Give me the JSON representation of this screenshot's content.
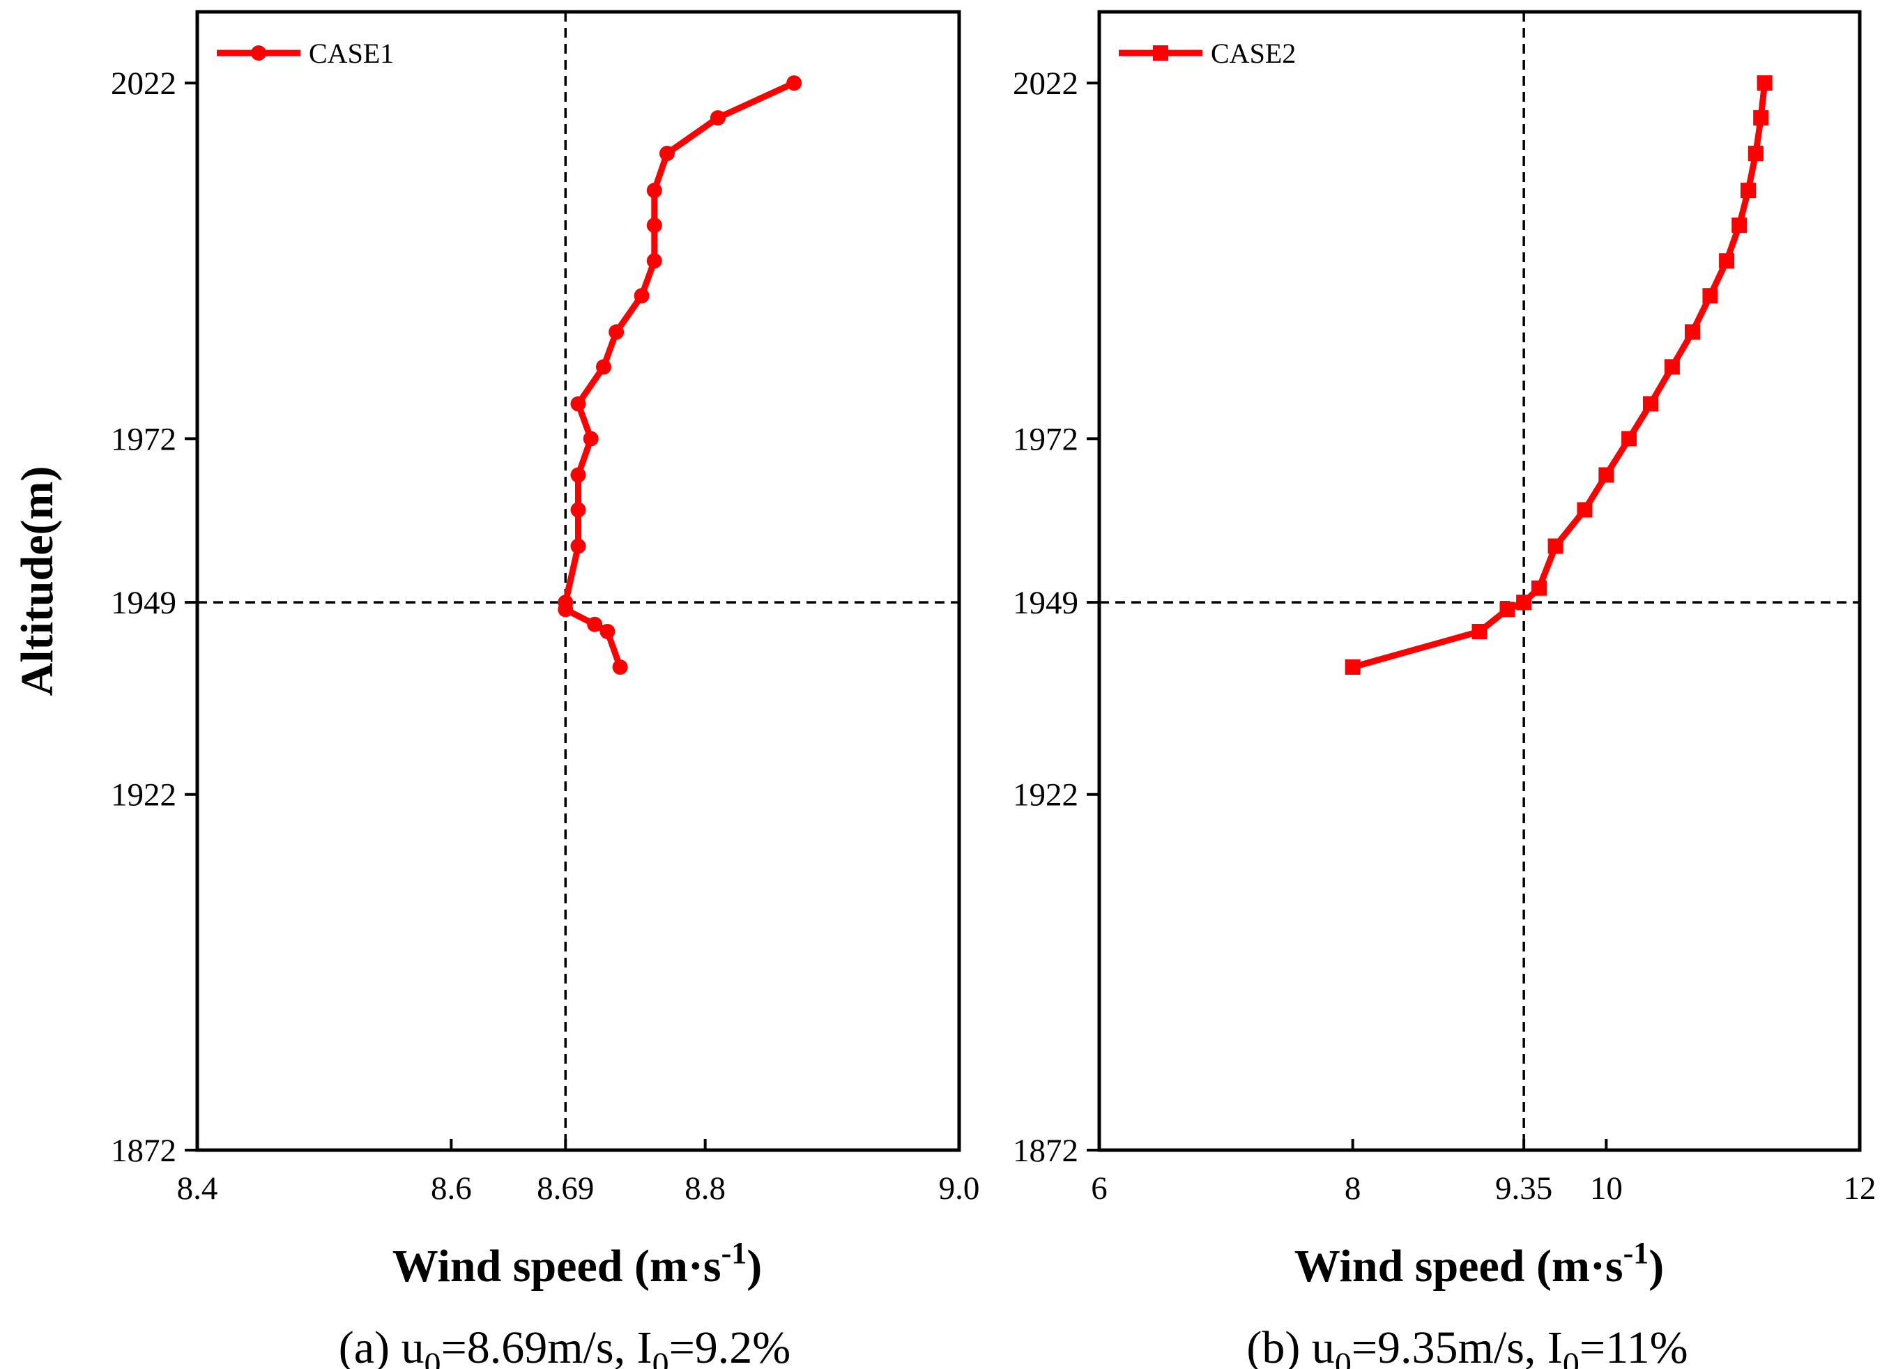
{
  "chart_data": [
    {
      "type": "line",
      "panel": "a",
      "series": [
        {
          "name": "CASE1",
          "marker": "circle",
          "color": "#ff0000",
          "points": [
            [
              8.733,
              1939.9
            ],
            [
              8.723,
              1944.9
            ],
            [
              8.713,
              1945.9
            ],
            [
              8.69,
              1948.0
            ],
            [
              8.69,
              1949.0
            ],
            [
              8.7,
              1956.9
            ],
            [
              8.7,
              1962.0
            ],
            [
              8.7,
              1966.9
            ],
            [
              8.71,
              1972.0
            ],
            [
              8.7,
              1976.9
            ],
            [
              8.72,
              1982.1
            ],
            [
              8.73,
              1987.0
            ],
            [
              8.75,
              1992.1
            ],
            [
              8.76,
              1997.0
            ],
            [
              8.76,
              2002.0
            ],
            [
              8.76,
              2006.9
            ],
            [
              8.77,
              2012.1
            ],
            [
              8.81,
              2017.1
            ],
            [
              8.87,
              2022.0
            ]
          ]
        }
      ],
      "xlim": [
        8.4,
        9.0
      ],
      "ylim": [
        1872,
        2032
      ],
      "xticks": [
        "8.4",
        "8.6",
        "8.69",
        "8.8",
        "9.0"
      ],
      "xtick_values": [
        8.4,
        8.6,
        8.69,
        8.8,
        9.0
      ],
      "yticks": [
        "1872",
        "1922",
        "1949",
        "1972",
        "2022"
      ],
      "ytick_values": [
        1872,
        1922,
        1949,
        1972,
        2022
      ],
      "ref_lines": {
        "x": 8.69,
        "y": 1949
      },
      "xlabel": "Wind speed (m·s",
      "xlabel_sup": "-1",
      "xlabel_end": ")",
      "ylabel": "Altitude(m)",
      "legend_position": "top-left",
      "caption": {
        "prefix": "(a) u",
        "sub1": "0",
        "middle": "=8.69m/s,  I",
        "sub2": "0",
        "suffix": "=9.2%"
      }
    },
    {
      "type": "line",
      "panel": "b",
      "series": [
        {
          "name": "CASE2",
          "marker": "square",
          "color": "#ff0000",
          "points": [
            [
              8.0,
              1939.9
            ],
            [
              9.0,
              1944.9
            ],
            [
              9.22,
              1948.0
            ],
            [
              9.35,
              1949.0
            ],
            [
              9.47,
              1951.0
            ],
            [
              9.6,
              1956.9
            ],
            [
              9.83,
              1962.0
            ],
            [
              10.0,
              1966.9
            ],
            [
              10.18,
              1972.0
            ],
            [
              10.35,
              1976.9
            ],
            [
              10.52,
              1982.1
            ],
            [
              10.68,
              1987.0
            ],
            [
              10.82,
              1992.1
            ],
            [
              10.95,
              1997.0
            ],
            [
              11.05,
              2002.0
            ],
            [
              11.12,
              2006.9
            ],
            [
              11.18,
              2012.1
            ],
            [
              11.22,
              2017.1
            ],
            [
              11.25,
              2022.0
            ]
          ]
        }
      ],
      "xlim": [
        6,
        12
      ],
      "ylim": [
        1872,
        2032
      ],
      "xticks": [
        "6",
        "8",
        "9.35",
        "10",
        "12"
      ],
      "xtick_values": [
        6,
        8,
        9.35,
        10,
        12
      ],
      "yticks": [
        "1872",
        "1922",
        "1949",
        "1972",
        "2022"
      ],
      "ytick_values": [
        1872,
        1922,
        1949,
        1972,
        2022
      ],
      "ref_lines": {
        "x": 9.35,
        "y": 1949
      },
      "xlabel": "Wind speed (m·s",
      "xlabel_sup": "-1",
      "xlabel_end": ")",
      "legend_position": "top-left",
      "caption": {
        "prefix": "(b) u",
        "sub1": "0",
        "middle": "=9.35m/s,  I",
        "sub2": "0",
        "suffix": "=11%"
      }
    }
  ]
}
